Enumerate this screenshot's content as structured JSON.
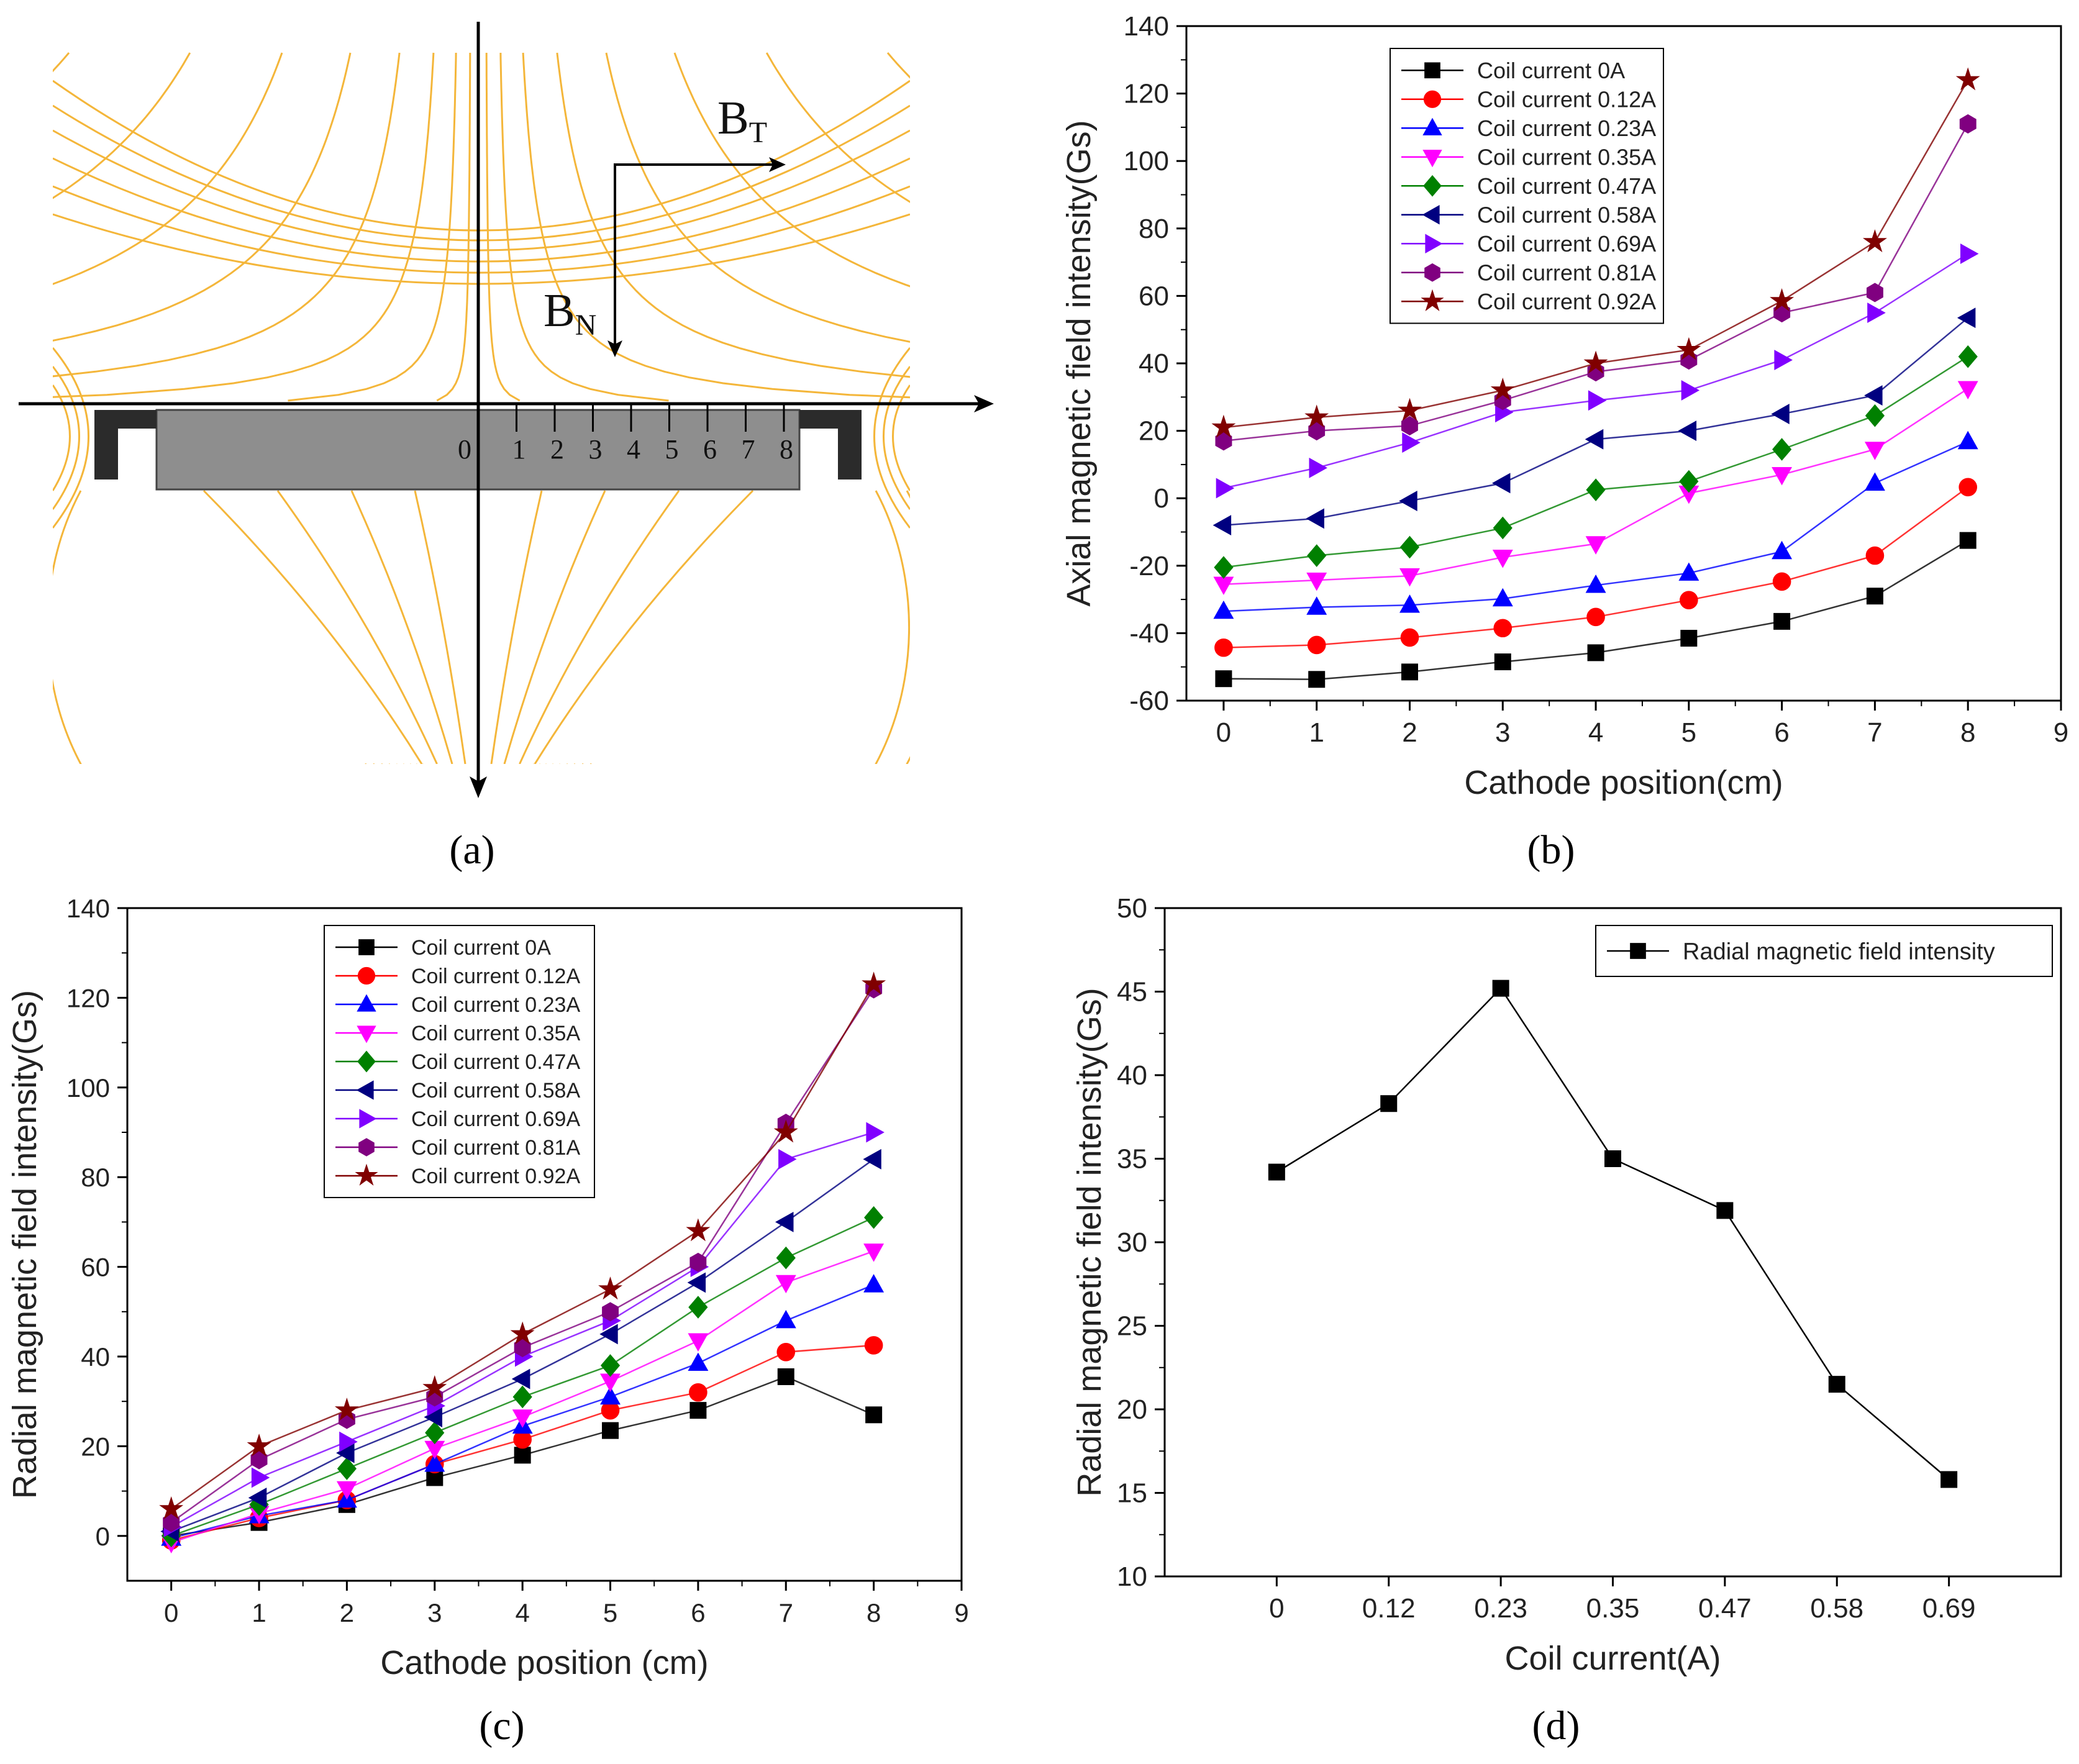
{
  "panel_a": {
    "label": "(a)",
    "bt_label": "B",
    "bt_sub": "T",
    "bn_label": "B",
    "bn_sub": "N",
    "ticks": [
      "0",
      "1",
      "2",
      "3",
      "4",
      "5",
      "6",
      "7",
      "8"
    ],
    "line_color": "#f4b63a"
  },
  "panel_labels": {
    "b": "(b)",
    "c": "(c)",
    "d": "(d)"
  },
  "chart_data": [
    {
      "id": "b",
      "type": "line",
      "title": "",
      "xlabel": "Cathode position(cm)",
      "ylabel": "Axial magnetic field intensity(Gs)",
      "xlim": [
        -0.4,
        9
      ],
      "ylim": [
        -60,
        140
      ],
      "xticks": [
        0,
        1,
        2,
        3,
        4,
        5,
        6,
        7,
        8,
        9
      ],
      "yticks": [
        -60,
        -40,
        -20,
        0,
        20,
        40,
        60,
        80,
        100,
        120,
        140
      ],
      "legend": "top-left",
      "x": [
        0,
        1,
        2,
        3,
        4,
        5,
        6,
        7,
        8
      ],
      "series": [
        {
          "name": "Coil current 0A",
          "color": "#000000",
          "marker": "square",
          "values": [
            -53.5,
            -53.7,
            -51.5,
            -48.5,
            -45.8,
            -41.5,
            -36.5,
            -29,
            -12.5
          ]
        },
        {
          "name": "Coil current 0.12A",
          "color": "#ff0000",
          "marker": "circle",
          "values": [
            -44.3,
            -43.5,
            -41.3,
            -38.5,
            -35.2,
            -30.2,
            -24.7,
            -17,
            3.3
          ]
        },
        {
          "name": "Coil current 0.23A",
          "color": "#0000ff",
          "marker": "triangle-up",
          "values": [
            -33.5,
            -32.3,
            -31.7,
            -29.8,
            -25.8,
            -22.2,
            -15.8,
            4.5,
            16.8
          ]
        },
        {
          "name": "Coil current 0.35A",
          "color": "#ff00ff",
          "marker": "triangle-down",
          "values": [
            -25.5,
            -24.3,
            -23,
            -17.5,
            -13.5,
            1.5,
            7,
            14.5,
            32.5
          ]
        },
        {
          "name": "Coil current 0.47A",
          "color": "#008000",
          "marker": "diamond",
          "values": [
            -20.5,
            -17,
            -14.5,
            -8.8,
            2.5,
            5,
            14.5,
            24.5,
            42
          ]
        },
        {
          "name": "Coil current 0.58A",
          "color": "#000080",
          "marker": "triangle-left",
          "values": [
            -8,
            -6,
            -0.8,
            4.5,
            17.5,
            20,
            25,
            30.5,
            53.5
          ]
        },
        {
          "name": "Coil current 0.69A",
          "color": "#8000ff",
          "marker": "triangle-right",
          "values": [
            3,
            9,
            16.5,
            25.5,
            29,
            32,
            41,
            55,
            72.5
          ]
        },
        {
          "name": "Coil current 0.81A",
          "color": "#800080",
          "marker": "hexagon",
          "values": [
            17,
            20,
            21.5,
            29,
            37.5,
            41,
            55,
            61,
            111
          ]
        },
        {
          "name": "Coil current 0.92A",
          "color": "#800000",
          "marker": "star",
          "values": [
            21,
            24,
            26,
            32,
            40,
            44,
            58.5,
            76,
            124
          ]
        }
      ]
    },
    {
      "id": "c",
      "type": "line",
      "title": "",
      "xlabel": "Cathode position (cm)",
      "ylabel": "Radial magnetic field intensity(Gs)",
      "xlim": [
        -0.5,
        9
      ],
      "ylim": [
        -10,
        140
      ],
      "xticks": [
        0,
        1,
        2,
        3,
        4,
        5,
        6,
        7,
        8,
        9
      ],
      "yticks": [
        0,
        20,
        40,
        60,
        80,
        100,
        120,
        140
      ],
      "legend": "top-left",
      "x": [
        0,
        1,
        2,
        3,
        4,
        5,
        6,
        7,
        8
      ],
      "series": [
        {
          "name": "Coil current 0A",
          "color": "#000000",
          "marker": "square",
          "values": [
            0,
            3,
            7,
            13,
            18,
            23.5,
            28,
            35.5,
            27
          ]
        },
        {
          "name": "Coil current 0.12A",
          "color": "#ff0000",
          "marker": "circle",
          "values": [
            -1,
            4,
            8,
            16,
            21.5,
            28,
            32,
            41,
            42.5
          ]
        },
        {
          "name": "Coil current 0.23A",
          "color": "#0000ff",
          "marker": "triangle-up",
          "values": [
            -0.5,
            4.5,
            8,
            16,
            24.5,
            31,
            38.5,
            48,
            56
          ]
        },
        {
          "name": "Coil current 0.35A",
          "color": "#ff00ff",
          "marker": "triangle-down",
          "values": [
            -1.5,
            5,
            10.5,
            19.5,
            26.5,
            34.5,
            43.5,
            56.5,
            63.5
          ]
        },
        {
          "name": "Coil current 0.47A",
          "color": "#008000",
          "marker": "diamond",
          "values": [
            0,
            7,
            15,
            23,
            31,
            38,
            51,
            62,
            71
          ]
        },
        {
          "name": "Coil current 0.58A",
          "color": "#000080",
          "marker": "triangle-left",
          "values": [
            1,
            8.5,
            18.5,
            26.5,
            35,
            45,
            56.5,
            70,
            84
          ]
        },
        {
          "name": "Coil current 0.69A",
          "color": "#8000ff",
          "marker": "triangle-right",
          "values": [
            2,
            13,
            21,
            29,
            40,
            48,
            60,
            84,
            90
          ]
        },
        {
          "name": "Coil current 0.81A",
          "color": "#800080",
          "marker": "hexagon",
          "values": [
            3,
            17,
            26,
            31,
            42,
            50,
            61,
            92,
            122
          ]
        },
        {
          "name": "Coil current 0.92A",
          "color": "#800000",
          "marker": "star",
          "values": [
            6,
            20,
            28,
            33,
            45,
            55,
            68,
            90,
            123
          ]
        }
      ]
    },
    {
      "id": "d",
      "type": "line",
      "title": "",
      "xlabel": "Coil current(A)",
      "ylabel": "Radial magnetic field intensity(Gs)",
      "ylim": [
        10,
        50
      ],
      "yticks": [
        10,
        15,
        20,
        25,
        30,
        35,
        40,
        45,
        50
      ],
      "legend": "top-right",
      "categories": [
        "0",
        "0.12",
        "0.23",
        "0.35",
        "0.47",
        "0.58",
        "0.69"
      ],
      "series": [
        {
          "name": "Radial magnetic field intensity",
          "color": "#000000",
          "marker": "square",
          "values": [
            34.2,
            38.3,
            45.2,
            35,
            31.9,
            21.5,
            15.8
          ]
        }
      ]
    }
  ]
}
